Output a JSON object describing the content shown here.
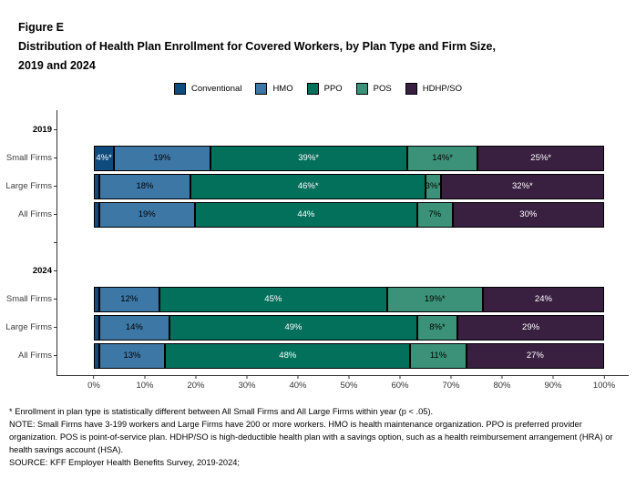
{
  "header": {
    "figure_label": "Figure E",
    "title_lines": [
      "Distribution of Health Plan Enrollment for Covered Workers, by Plan Type and Firm Size,",
      "2019 and 2024"
    ]
  },
  "chart_data": {
    "type": "bar",
    "orientation": "horizontal",
    "stacked": true,
    "title": "Distribution of Health Plan Enrollment for Covered Workers, by Plan Type and Firm Size, 2019 and 2024",
    "xlabel": "",
    "ylabel": "",
    "xlim": [
      0,
      100
    ],
    "grid": false,
    "legend_position": "top",
    "x_ticks": [
      "0%",
      "10%",
      "20%",
      "30%",
      "40%",
      "50%",
      "60%",
      "70%",
      "80%",
      "90%",
      "100%"
    ],
    "series": [
      {
        "name": "Conventional",
        "color": "#0F4B7D",
        "text_color": "#FFFFFF"
      },
      {
        "name": "HMO",
        "color": "#3D77A6",
        "text_color": "#000000"
      },
      {
        "name": "PPO",
        "color": "#03705C",
        "text_color": "#FFFFFF"
      },
      {
        "name": "POS",
        "color": "#3B9278",
        "text_color": "#000000"
      },
      {
        "name": "HDHP/SO",
        "color": "#392040",
        "text_color": "#FFFFFF"
      }
    ],
    "groups": [
      {
        "year": "2019",
        "rows": [
          {
            "label": "Small Firms",
            "values": [
              4,
              19,
              39,
              14,
              25
            ],
            "labels": [
              "4%*",
              "19%",
              "39%*",
              "14%*",
              "25%*"
            ]
          },
          {
            "label": "Large Firms",
            "values": [
              1,
              18,
              46,
              3,
              32
            ],
            "labels": [
              "",
              "18%",
              "46%*",
              "3%*",
              "32%*"
            ]
          },
          {
            "label": "All Firms",
            "values": [
              1,
              19,
              44,
              7,
              30
            ],
            "labels": [
              "",
              "19%",
              "44%",
              "7%",
              "30%"
            ]
          }
        ]
      },
      {
        "year": "2024",
        "rows": [
          {
            "label": "Small Firms",
            "values": [
              1,
              12,
              45,
              19,
              24
            ],
            "labels": [
              "",
              "12%",
              "45%",
              "19%*",
              "24%"
            ]
          },
          {
            "label": "Large Firms",
            "values": [
              1,
              14,
              49,
              8,
              29
            ],
            "labels": [
              "",
              "14%",
              "49%",
              "8%*",
              "29%"
            ]
          },
          {
            "label": "All Firms",
            "values": [
              1,
              13,
              48,
              11,
              27
            ],
            "labels": [
              "",
              "13%",
              "48%",
              "11%",
              "27%"
            ]
          }
        ]
      }
    ]
  },
  "notes": {
    "asterisk": "* Enrollment in plan type is statistically different between All Small Firms and All Large Firms within year (p < .05).",
    "note": "NOTE: Small Firms have 3-199 workers and Large Firms have 200 or more workers. HMO is health maintenance organization. PPO is preferred provider organization. POS is point-of-service plan. HDHP/SO is high-deductible health plan with a savings option, such as a health reimbursement arrangement (HRA) or health savings account (HSA).",
    "source": "SOURCE: KFF Employer Health Benefits Survey, 2019-2024;"
  }
}
